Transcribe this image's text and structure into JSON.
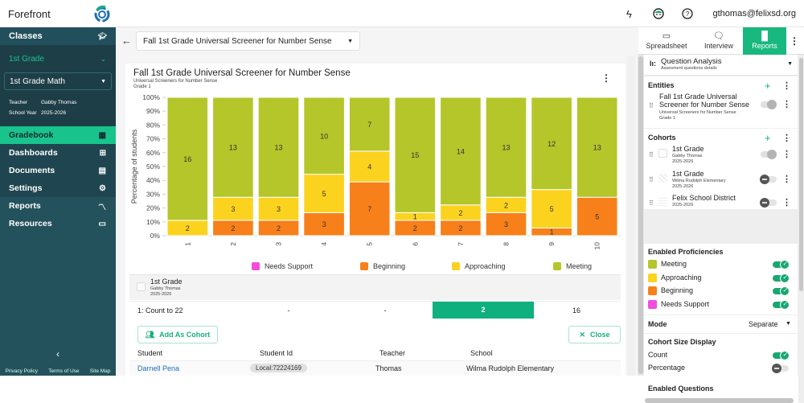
{
  "app": {
    "brand": "Forefront",
    "user_email": "gthomas@felixsd.org"
  },
  "top_icons": [
    "lightning-icon",
    "mascot-icon",
    "help-icon"
  ],
  "sidebar": {
    "classes_label": "Classes",
    "grade_label": "1st Grade",
    "class_select": "1st Grade Math",
    "teacher_label": "Teacher",
    "teacher_value": "Gabby Thomas",
    "year_label": "School Year",
    "year_value": "2025-2026",
    "nav": [
      {
        "label": "Gradebook",
        "icon": "grid-icon",
        "active": true
      },
      {
        "label": "Dashboards",
        "icon": "dashboard-icon"
      },
      {
        "label": "Documents",
        "icon": "document-icon"
      },
      {
        "label": "Settings",
        "icon": "gear-icon"
      },
      {
        "label": "Reports",
        "icon": "trend-icon"
      },
      {
        "label": "Resources",
        "icon": "folder-icon"
      }
    ],
    "footer": [
      "Privacy Policy",
      "Terms of Use",
      "Site Map"
    ]
  },
  "main": {
    "assessment_select": "Fall 1st Grade Universal Screener for Number Sense",
    "card": {
      "title": "Fall 1st Grade Universal Screener for Number Sense",
      "subtitle1": "Universal Screeners for Number Sense",
      "subtitle2": "Grade 1"
    },
    "cohort": {
      "name": "1st Grade",
      "teacher": "Gabby Thomas",
      "year": "2025-2026"
    },
    "question_row": {
      "label": "1: Count to 22",
      "needs_support": "-",
      "beginning": "-",
      "approaching": "2",
      "meeting": "16"
    },
    "add_cohort_label": "Add As Cohort",
    "close_label": "Close",
    "students_table": {
      "headers": [
        "Student",
        "Student Id",
        "Teacher",
        "School"
      ],
      "rows": [
        {
          "student": "Darnell Pena",
          "id": "Local:72224169",
          "teacher": "Thomas",
          "school": "Wilma Rudolph Elementary"
        }
      ]
    }
  },
  "chart_data": {
    "type": "bar",
    "stacked": true,
    "normalized": true,
    "ylabel": "Percentage of students",
    "xlabel": "",
    "ylim": [
      0,
      100
    ],
    "yticks": [
      "0%",
      "10%",
      "20%",
      "30%",
      "40%",
      "50%",
      "60%",
      "70%",
      "80%",
      "90%",
      "100%"
    ],
    "categories": [
      "1",
      "2",
      "3",
      "4",
      "5",
      "6",
      "7",
      "8",
      "9",
      "10"
    ],
    "series": [
      {
        "name": "Needs Support",
        "color": "#f24de0",
        "values": [
          0,
          0,
          0,
          0,
          0,
          0,
          0,
          0,
          0,
          0
        ]
      },
      {
        "name": "Beginning",
        "color": "#f7801a",
        "values": [
          0,
          2,
          2,
          3,
          7,
          2,
          2,
          3,
          1,
          5
        ]
      },
      {
        "name": "Approaching",
        "color": "#fbd31f",
        "values": [
          2,
          3,
          3,
          5,
          4,
          1,
          2,
          2,
          5,
          0
        ]
      },
      {
        "name": "Meeting",
        "color": "#b4c62a",
        "values": [
          16,
          13,
          13,
          10,
          7,
          15,
          14,
          13,
          12,
          13
        ]
      }
    ],
    "legend_position": "bottom"
  },
  "right_panel": {
    "tabs": [
      {
        "label": "Spreadsheet",
        "icon": "spreadsheet-icon"
      },
      {
        "label": "Interview",
        "icon": "interview-icon"
      },
      {
        "label": "Reports",
        "icon": "bar-chart-icon",
        "active": true
      }
    ],
    "report_type": {
      "title": "Question Analysis",
      "subtitle": "Assesment questions details"
    },
    "entities": {
      "heading": "Entities",
      "items": [
        {
          "title": "Fall 1st Grade Universal Screener for Number Sense",
          "sub1": "Universal Screeners for Number Sense",
          "sub2": "Grade 1",
          "toggle": "disabled"
        }
      ]
    },
    "cohorts": {
      "heading": "Cohorts",
      "items": [
        {
          "title": "1st Grade",
          "sub1": "Gabby Thomas",
          "sub2": "2025-2026",
          "toggle": "disabled"
        },
        {
          "title": "1st Grade",
          "sub1": "Wilma Rudolph Elementary",
          "sub2": "2025-2026",
          "toggle": "off"
        },
        {
          "title": "Felix School District",
          "sub1": "2025-2026",
          "toggle": "off"
        }
      ]
    },
    "proficiencies": {
      "heading": "Enabled Proficiencies",
      "items": [
        {
          "label": "Meeting",
          "color": "#b4c62a",
          "enabled": true
        },
        {
          "label": "Approaching",
          "color": "#fbd31f",
          "enabled": true
        },
        {
          "label": "Beginning",
          "color": "#f7801a",
          "enabled": true
        },
        {
          "label": "Needs Support",
          "color": "#f24de0",
          "enabled": true
        }
      ]
    },
    "mode": {
      "label": "Mode",
      "value": "Separate"
    },
    "cohort_size": {
      "heading": "Cohort Size Display",
      "count_label": "Count",
      "count_on": true,
      "percentage_label": "Percentage",
      "percentage_on": false
    },
    "enabled_questions": "Enabled Questions"
  }
}
